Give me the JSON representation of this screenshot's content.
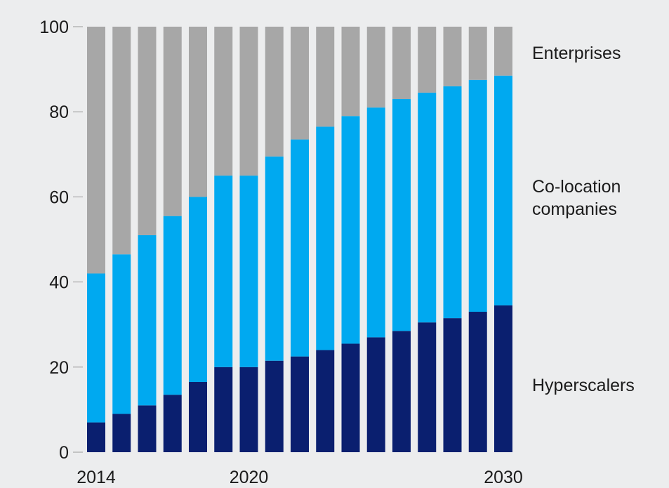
{
  "chart_data": {
    "type": "bar",
    "stacked": true,
    "title": "",
    "xlabel": "",
    "ylabel": "",
    "ylim": [
      0,
      100
    ],
    "yticks": [
      0,
      20,
      40,
      60,
      80,
      100
    ],
    "x_tick_labels": [
      "2014",
      "2020",
      "2030"
    ],
    "categories": [
      "2014",
      "2015",
      "2016",
      "2017",
      "2018",
      "2019",
      "2020",
      "2021",
      "2022",
      "2023",
      "2024",
      "2025",
      "2026",
      "2027",
      "2028",
      "2029",
      "2030"
    ],
    "series": [
      {
        "name": "Hyperscalers",
        "color": "#0a1f6f",
        "values": [
          7,
          9,
          11,
          13.5,
          16.5,
          20,
          20,
          21.5,
          22.5,
          24,
          25.5,
          27,
          28.5,
          30.5,
          31.5,
          33,
          34.5
        ]
      },
      {
        "name": "Co-location companies",
        "color": "#00a9f0",
        "values": [
          35,
          37.5,
          40,
          42,
          43.5,
          45,
          45,
          48,
          51,
          52.5,
          53.5,
          54,
          54.5,
          54,
          54.5,
          54.5,
          54
        ]
      },
      {
        "name": "Enterprises",
        "color": "#a7a7a7",
        "values": [
          58,
          53.5,
          49,
          44.5,
          40,
          35,
          35,
          30.5,
          26.5,
          23.5,
          21,
          19,
          17,
          15.5,
          14,
          12.5,
          11.5
        ]
      }
    ],
    "legend": {
      "placement": "right",
      "entries": [
        {
          "lines": [
            "Enterprises"
          ]
        },
        {
          "lines": [
            "Co-location",
            "companies"
          ]
        },
        {
          "lines": [
            "Hyperscalers"
          ]
        }
      ]
    },
    "grid": false
  }
}
